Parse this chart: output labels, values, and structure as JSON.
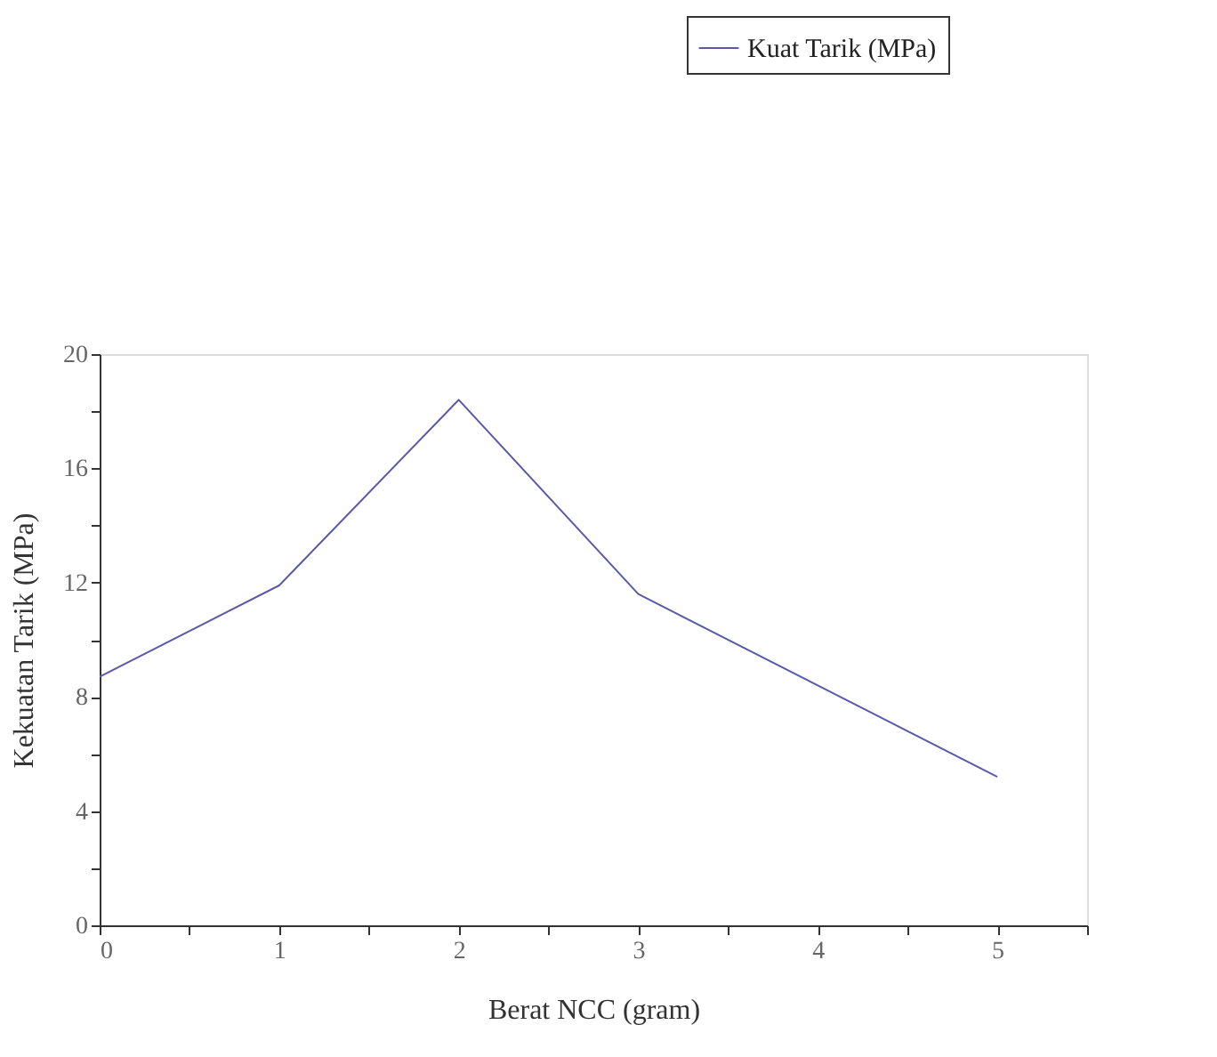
{
  "chart_data": {
    "type": "line",
    "xlabel": "Berat NCC (gram)",
    "ylabel": "Kekuatan Tarik (MPa)",
    "x": [
      0,
      1,
      2,
      3,
      4,
      5
    ],
    "series": [
      {
        "name": "Kuat Tarik (MPa)",
        "color": "#5a5aa8",
        "values": [
          8.7,
          11.9,
          18.4,
          11.6,
          8.4,
          5.2
        ]
      }
    ],
    "xlim": [
      0,
      5.5
    ],
    "xticks": [
      0,
      {
        "value": 0.5,
        "label": null
      },
      1,
      {
        "value": 1.5,
        "label": null
      },
      2,
      {
        "value": 2.5,
        "label": null
      },
      3,
      {
        "value": 3.5,
        "label": null
      },
      4,
      {
        "value": 4.5,
        "label": null
      },
      5,
      {
        "value": 5.5,
        "label": null
      }
    ],
    "ylim": [
      0,
      20
    ],
    "yticks": [
      0,
      {
        "value": 2,
        "label": null
      },
      4,
      {
        "value": 6,
        "label": null
      },
      8,
      {
        "value": 10,
        "label": null
      },
      12,
      {
        "value": 14,
        "label": null
      },
      16,
      {
        "value": 18,
        "label": null
      },
      20
    ],
    "grid": false,
    "legend": "top right",
    "marker": "none",
    "line_style": "solid"
  }
}
